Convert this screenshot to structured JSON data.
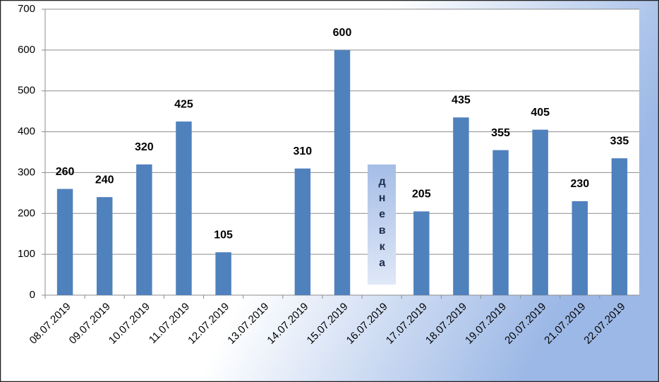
{
  "chart_data": {
    "type": "bar",
    "categories": [
      "08.07.2019",
      "09.07.2019",
      "10.07.2019",
      "11.07.2019",
      "12.07.2019",
      "13.07.2019",
      "14.07.2019",
      "15.07.2019",
      "16.07.2019",
      "17.07.2019",
      "18.07.2019",
      "19.07.2019",
      "20.07.2019",
      "21.07.2019",
      "22.07.2019"
    ],
    "values": [
      260,
      240,
      320,
      425,
      105,
      null,
      310,
      600,
      null,
      205,
      435,
      355,
      405,
      230,
      335
    ],
    "color": "#4f81bd",
    "ylim": [
      0,
      700
    ],
    "yticks": [
      0,
      100,
      200,
      300,
      400,
      500,
      600,
      700
    ],
    "grid": true,
    "annotations": [
      {
        "text": "дневка",
        "category": "16.07.2019"
      }
    ]
  }
}
